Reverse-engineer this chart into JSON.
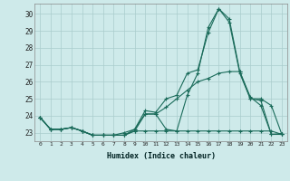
{
  "xlabel": "Humidex (Indice chaleur)",
  "bg_color": "#ceeaea",
  "grid_color": "#aacccc",
  "line_color": "#1a6b5a",
  "xlim": [
    -0.5,
    23.5
  ],
  "ylim": [
    22.5,
    30.6
  ],
  "yticks": [
    23,
    24,
    25,
    26,
    27,
    28,
    29,
    30
  ],
  "xticks": [
    0,
    1,
    2,
    3,
    4,
    5,
    6,
    7,
    8,
    9,
    10,
    11,
    12,
    13,
    14,
    15,
    16,
    17,
    18,
    19,
    20,
    21,
    22,
    23
  ],
  "series": [
    {
      "x": [
        0,
        1,
        2,
        3,
        4,
        5,
        6,
        7,
        8,
        9,
        10,
        11,
        12,
        13,
        14,
        15,
        16,
        17,
        18,
        19,
        20,
        21,
        22,
        23
      ],
      "y": [
        23.9,
        23.2,
        23.2,
        23.3,
        23.1,
        22.85,
        22.85,
        22.85,
        22.85,
        23.1,
        24.1,
        24.1,
        23.2,
        23.1,
        25.2,
        26.5,
        29.2,
        30.3,
        29.7,
        26.6,
        25.1,
        24.6,
        22.9,
        22.95
      ]
    },
    {
      "x": [
        0,
        1,
        2,
        3,
        4,
        5,
        6,
        7,
        8,
        9,
        10,
        11,
        12,
        13,
        14,
        15,
        16,
        17,
        18,
        19,
        20,
        21,
        22,
        23
      ],
      "y": [
        23.9,
        23.2,
        23.2,
        23.3,
        23.1,
        22.85,
        22.85,
        22.85,
        22.85,
        23.1,
        23.1,
        23.1,
        23.1,
        23.1,
        23.1,
        23.1,
        23.1,
        23.1,
        23.1,
        23.1,
        23.1,
        23.1,
        23.1,
        22.9
      ]
    },
    {
      "x": [
        0,
        1,
        2,
        3,
        4,
        5,
        6,
        7,
        8,
        9,
        10,
        11,
        12,
        13,
        14,
        15,
        16,
        17,
        18,
        19,
        20,
        21,
        22,
        23
      ],
      "y": [
        23.9,
        23.2,
        23.2,
        23.3,
        23.1,
        22.85,
        22.85,
        22.85,
        23.0,
        23.2,
        24.3,
        24.2,
        25.0,
        25.2,
        26.5,
        26.7,
        28.9,
        30.3,
        29.5,
        26.5,
        25.0,
        24.9,
        22.9,
        22.9
      ]
    },
    {
      "x": [
        0,
        1,
        2,
        3,
        4,
        5,
        6,
        7,
        8,
        9,
        10,
        11,
        12,
        13,
        14,
        15,
        16,
        17,
        18,
        19,
        20,
        21,
        22,
        23
      ],
      "y": [
        23.9,
        23.2,
        23.2,
        23.3,
        23.1,
        22.85,
        22.85,
        22.85,
        22.85,
        23.2,
        24.1,
        24.1,
        24.5,
        25.0,
        25.5,
        26.0,
        26.2,
        26.5,
        26.6,
        26.6,
        25.0,
        25.0,
        24.6,
        22.9
      ]
    }
  ]
}
